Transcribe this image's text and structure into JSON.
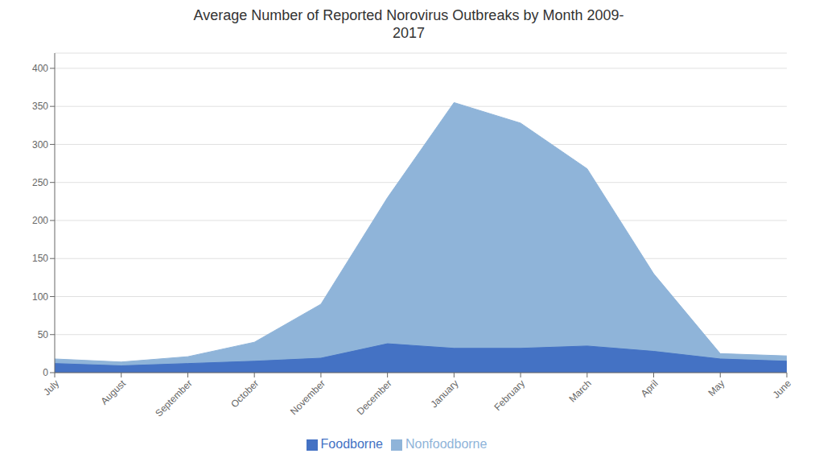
{
  "chart_data": {
    "type": "area",
    "title": "Average Number of Reported Norovirus Outbreaks by Month 2009-\n2017",
    "categories": [
      "July",
      "August",
      "September",
      "October",
      "November",
      "December",
      "January",
      "February",
      "March",
      "April",
      "May",
      "June"
    ],
    "series": [
      {
        "name": "Nonfoodborne",
        "color": "#8fb4d9",
        "values": [
          18,
          14,
          21,
          40,
          90,
          230,
          355,
          328,
          268,
          130,
          25,
          22
        ]
      },
      {
        "name": "Foodborne",
        "color": "#4472c4",
        "values": [
          12,
          9,
          12,
          15,
          19,
          38,
          32,
          32,
          35,
          28,
          18,
          15
        ]
      }
    ],
    "ylim": [
      0,
      420
    ],
    "yticks": [
      0,
      50,
      100,
      150,
      200,
      250,
      300,
      350,
      400
    ],
    "grid": true,
    "legend": "bottom"
  }
}
